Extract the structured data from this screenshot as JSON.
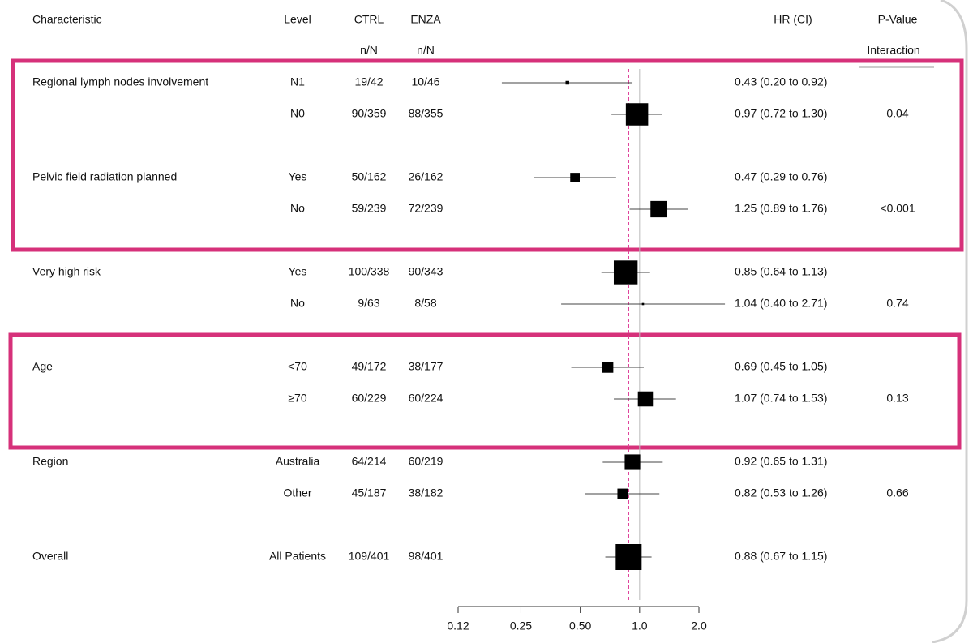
{
  "chart_data": {
    "type": "forest",
    "headers": [
      "Characteristic",
      "Level",
      "CTRL",
      "ENZA",
      "HR (CI)",
      "P-Value"
    ],
    "subheaders": [
      "n/N",
      "n/N",
      "Interaction"
    ],
    "characteristics": [
      "Regional lymph nodes involvement",
      null,
      "Pelvic field radiation planned",
      null,
      "Very high risk",
      null,
      "Age",
      null,
      "Region",
      null,
      "Overall"
    ],
    "levels": [
      "N1",
      "N0",
      "Yes",
      "No",
      "Yes",
      "No",
      "<70",
      "≥70",
      "Australia",
      "Other",
      "All Patients"
    ],
    "ctrl": [
      "19/42",
      "90/359",
      "50/162",
      "59/239",
      "100/338",
      "9/63",
      "49/172",
      "60/229",
      "64/214",
      "45/187",
      "109/401"
    ],
    "enza": [
      "10/46",
      "88/355",
      "26/162",
      "72/239",
      "90/343",
      "8/58",
      "38/177",
      "60/224",
      "60/219",
      "38/182",
      "98/401"
    ],
    "values": [
      0.43,
      0.97,
      0.47,
      1.25,
      0.85,
      1.04,
      0.69,
      1.07,
      0.92,
      0.82,
      0.88
    ],
    "lower": [
      0.2,
      0.72,
      0.29,
      0.89,
      0.64,
      0.4,
      0.45,
      0.74,
      0.65,
      0.53,
      0.67
    ],
    "upper": [
      0.92,
      1.3,
      0.76,
      1.76,
      1.13,
      2.71,
      1.05,
      1.53,
      1.31,
      1.26,
      1.15
    ],
    "value_labels": [
      "0.43 (0.20 to 0.92)",
      "0.97 (0.72 to 1.30)",
      "0.47 (0.29 to 0.76)",
      "1.25 (0.89 to 1.76)",
      "0.85 (0.64 to 1.13)",
      "1.04 (0.40 to 2.71)",
      "0.69 (0.45 to 1.05)",
      "1.07 (0.74 to 1.53)",
      "0.92 (0.65 to 1.31)",
      "0.82 (0.53 to 1.26)",
      "0.88 (0.67 to 1.15)"
    ],
    "weights": [
      29,
      178,
      76,
      131,
      190,
      17,
      87,
      120,
      124,
      83,
      207
    ],
    "p_values": [
      null,
      "0.04",
      null,
      "<0.001",
      null,
      "0.74",
      null,
      "0.13",
      null,
      "0.66",
      null
    ],
    "xscale": "log",
    "xlim": [
      0.12,
      2.0
    ],
    "xticks": [
      0.12,
      0.25,
      {
        "value": 0.5,
        "label": "0.50"
      },
      {
        "value": 1,
        "label": "1.0"
      },
      {
        "value": 2,
        "label": "2.0"
      }
    ],
    "null_line": 1,
    "box_color": "#000000",
    "overall_line_color": "#e0409a"
  }
}
